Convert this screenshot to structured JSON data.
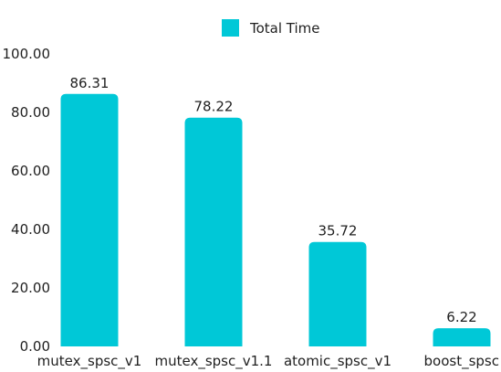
{
  "chart_data": {
    "type": "bar",
    "categories": [
      "mutex_spsc_v1",
      "mutex_spsc_v1.1",
      "atomic_spsc_v1",
      "boost_spsc"
    ],
    "series": [
      {
        "name": "Total Time",
        "values": [
          86.31,
          78.22,
          35.72,
          6.22
        ],
        "value_labels": [
          "86.31",
          "78.22",
          "35.72",
          "6.22"
        ],
        "color": "#00C8D7"
      }
    ],
    "yticks": [
      "0.00",
      "20.00",
      "40.00",
      "60.00",
      "80.00",
      "100.00"
    ],
    "ylim": [
      0,
      100
    ],
    "grid": false,
    "legend_position": "top-center"
  }
}
